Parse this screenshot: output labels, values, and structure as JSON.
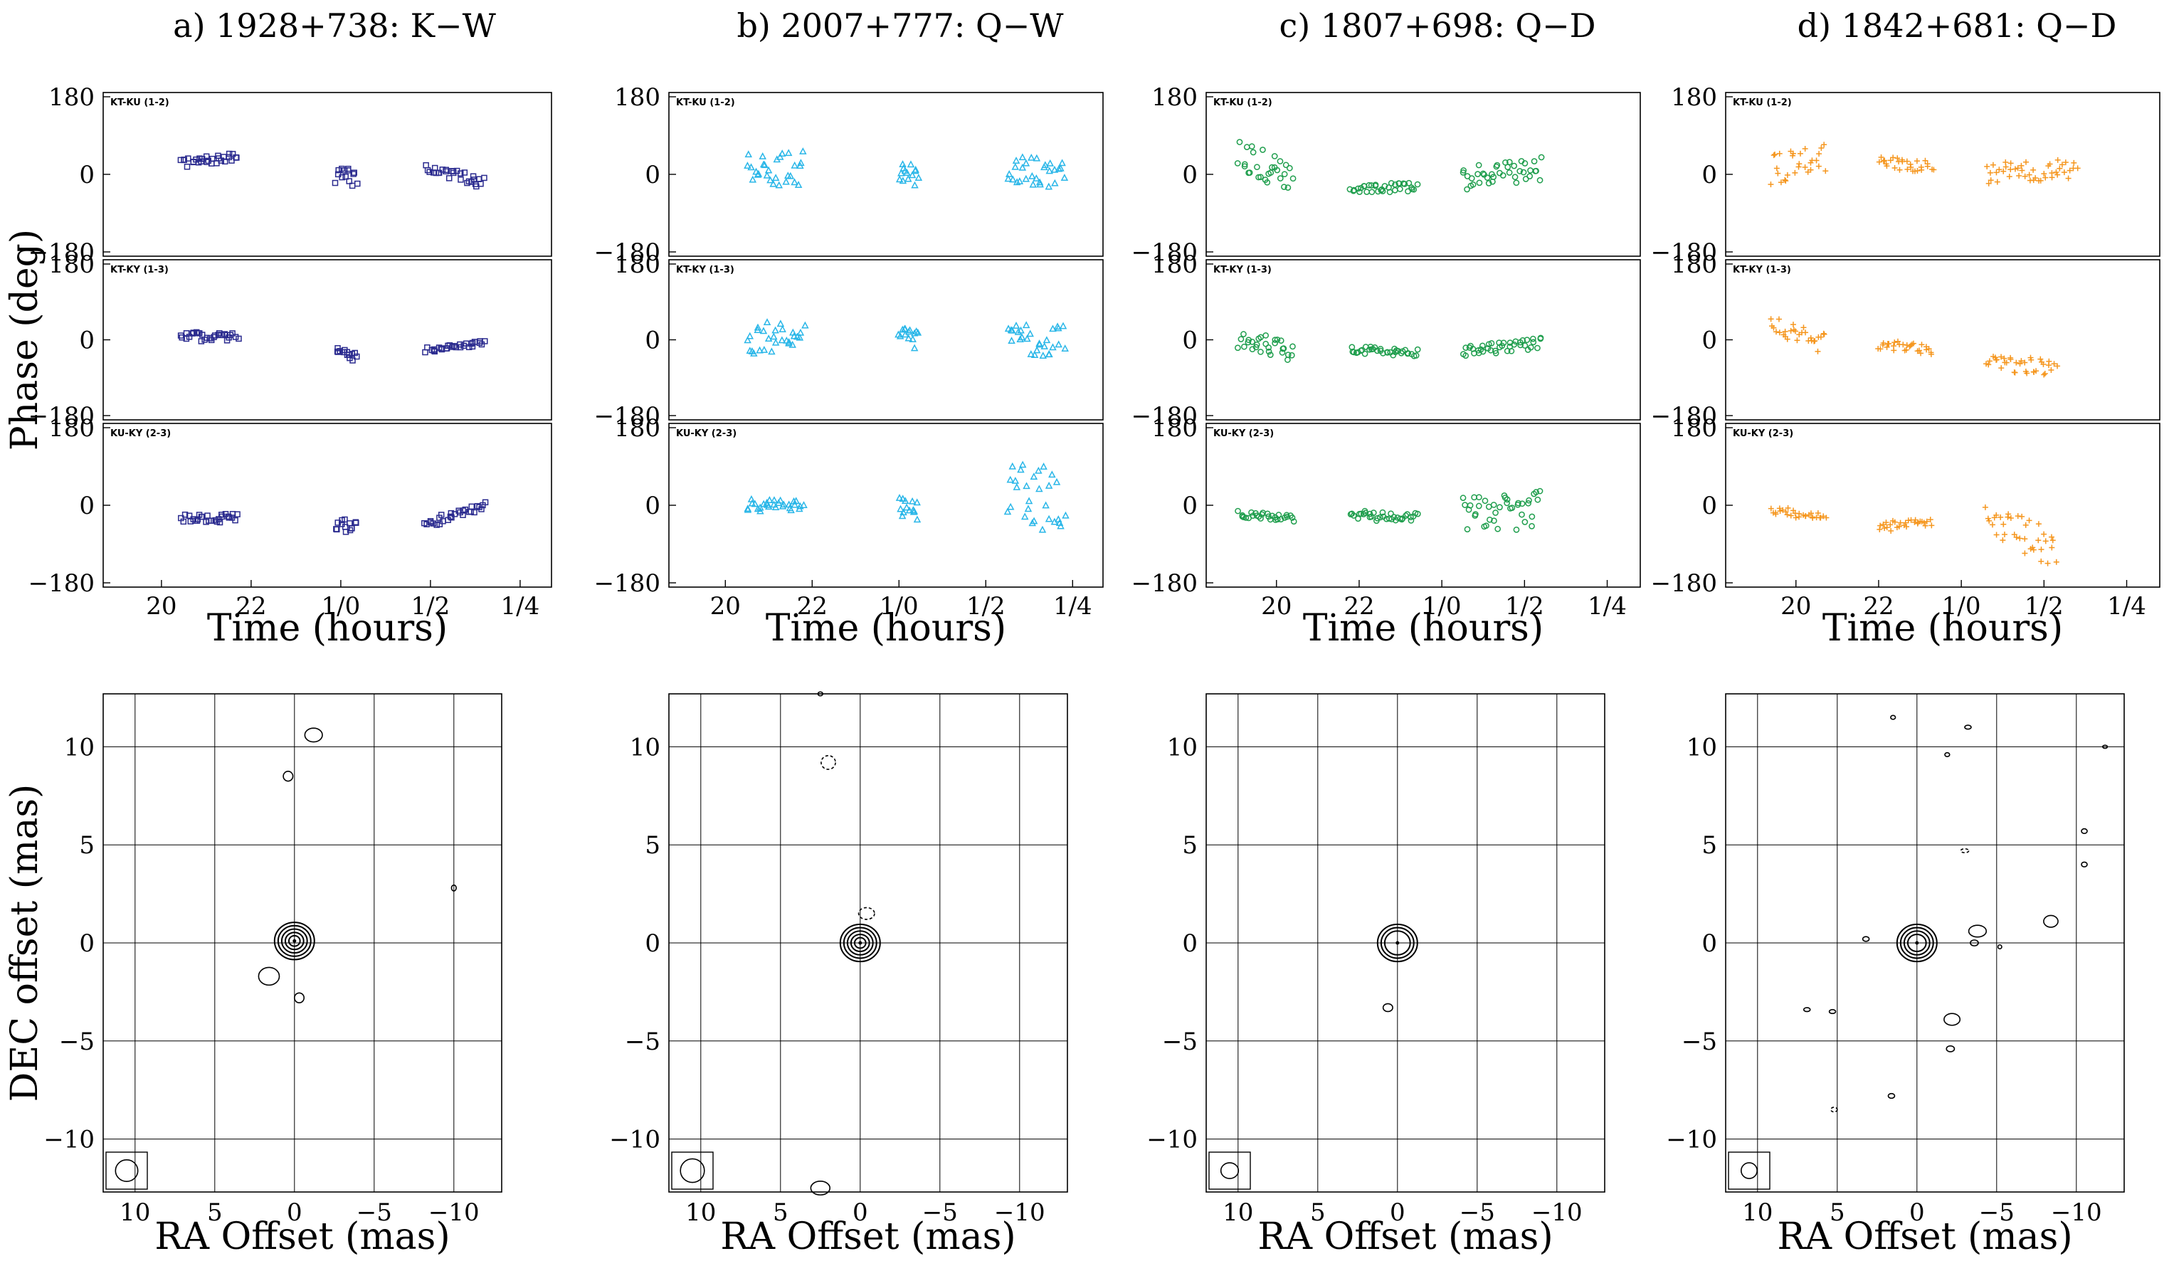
{
  "chart_data": [
    {
      "type": "scatter",
      "title": "a) 1928+738: K−W",
      "color": "#2b2b8f",
      "marker": "square",
      "phase": {
        "xlabel": "Time (hours)",
        "ylabel": "Phase (deg)",
        "ylim": [
          -180,
          180
        ],
        "yticks": [
          "180",
          "0",
          "−180"
        ],
        "xticks": [
          "20",
          "22",
          "1/0",
          "1/2",
          "1/4"
        ],
        "xtick_values": [
          20,
          22,
          24,
          26,
          28
        ],
        "xlim": [
          18.7,
          28.7
        ],
        "baselines": [
          {
            "name": "KT-KU (1-2)",
            "groups": [
              {
                "x0": 20.45,
                "x1": 21.7,
                "y0": 25,
                "y1": 40,
                "spread": 10
              },
              {
                "x0": 23.9,
                "x1": 24.35,
                "y0": 0,
                "y1": -10,
                "spread": 20
              },
              {
                "x0": 25.9,
                "x1": 27.2,
                "y0": 15,
                "y1": -20,
                "spread": 12
              }
            ]
          },
          {
            "name": "KT-KY (1-3)",
            "groups": [
              {
                "x0": 20.45,
                "x1": 21.7,
                "y0": 5,
                "y1": 10,
                "spread": 12
              },
              {
                "x0": 23.9,
                "x1": 24.35,
                "y0": -30,
                "y1": -40,
                "spread": 12
              },
              {
                "x0": 25.9,
                "x1": 27.2,
                "y0": -25,
                "y1": -10,
                "spread": 8
              }
            ]
          },
          {
            "name": "KU-KY (2-3)",
            "groups": [
              {
                "x0": 20.45,
                "x1": 21.7,
                "y0": -30,
                "y1": -30,
                "spread": 10
              },
              {
                "x0": 23.9,
                "x1": 24.35,
                "y0": -45,
                "y1": -50,
                "spread": 15
              },
              {
                "x0": 25.9,
                "x1": 27.2,
                "y0": -45,
                "y1": 0,
                "spread": 10
              }
            ]
          }
        ]
      },
      "map": {
        "xlabel": "RA Offset (mas)",
        "ylabel": "DEC offset (mas)",
        "xlim": [
          12,
          -13
        ],
        "ylim": [
          -12.7,
          12.7
        ],
        "xticks": [
          "10",
          "5",
          "0",
          "−5",
          "−10"
        ],
        "xtick_values": [
          10,
          5,
          0,
          -5,
          -10
        ],
        "yticks": [
          "10",
          "5",
          "0",
          "−5",
          "−10"
        ],
        "ytick_values": [
          10,
          5,
          0,
          -5,
          -10
        ],
        "core": {
          "x": 0,
          "y": 0.1,
          "levels": 5
        },
        "components": [
          {
            "x": -1.2,
            "y": 10.6,
            "rx": 0.55,
            "ry": 0.35,
            "dashed": false
          },
          {
            "x": 0.4,
            "y": 8.5,
            "rx": 0.3,
            "ry": 0.25,
            "dashed": false
          },
          {
            "x": -10,
            "y": 2.8,
            "rx": 0.15,
            "ry": 0.15,
            "dashed": false
          },
          {
            "x": 1.6,
            "y": -1.7,
            "rx": 0.65,
            "ry": 0.45,
            "dashed": false
          },
          {
            "x": -0.3,
            "y": -2.8,
            "rx": 0.3,
            "ry": 0.25,
            "dashed": false
          }
        ],
        "beam": {
          "rx": 0.7,
          "ry": 0.55
        }
      }
    },
    {
      "type": "scatter",
      "title": "b) 2007+777: Q−W",
      "color": "#29b6e8",
      "marker": "triangle",
      "phase": {
        "xlabel": "Time (hours)",
        "ylabel": "Phase (deg)",
        "ylim": [
          -180,
          180
        ],
        "yticks": [
          "180",
          "0",
          "−180"
        ],
        "xticks": [
          "20",
          "22",
          "1/0",
          "1/2",
          "1/4"
        ],
        "xtick_values": [
          20,
          22,
          24,
          26,
          28
        ],
        "xlim": [
          18.7,
          28.7
        ],
        "baselines": [
          {
            "name": "KT-KU (1-2)",
            "groups": [
              {
                "x0": 20.5,
                "x1": 21.8,
                "y0": 10,
                "y1": 15,
                "spread": 40
              },
              {
                "x0": 24.0,
                "x1": 24.45,
                "y0": 5,
                "y1": -5,
                "spread": 25
              },
              {
                "x0": 26.5,
                "x1": 27.8,
                "y0": 5,
                "y1": 5,
                "spread": 35
              }
            ]
          },
          {
            "name": "KT-KY (1-3)",
            "groups": [
              {
                "x0": 20.5,
                "x1": 21.8,
                "y0": 5,
                "y1": 15,
                "spread": 40
              },
              {
                "x0": 24.0,
                "x1": 24.45,
                "y0": 0,
                "y1": 5,
                "spread": 25
              },
              {
                "x0": 26.5,
                "x1": 27.8,
                "y0": -5,
                "y1": 0,
                "spread": 40
              }
            ]
          },
          {
            "name": "KU-KY (2-3)",
            "groups": [
              {
                "x0": 20.5,
                "x1": 21.8,
                "y0": 0,
                "y1": 0,
                "spread": 15
              },
              {
                "x0": 24.0,
                "x1": 24.45,
                "y0": 0,
                "y1": -10,
                "spread": 25
              },
              {
                "x0": 26.5,
                "x1": 27.8,
                "y0": 10,
                "y1": 30,
                "spread": 80
              }
            ]
          }
        ]
      },
      "map": {
        "xlabel": "RA Offset (mas)",
        "ylabel": "DEC offset (mas)",
        "xlim": [
          12,
          -13
        ],
        "ylim": [
          -12.7,
          12.7
        ],
        "xticks": [
          "10",
          "5",
          "0",
          "−5",
          "−10"
        ],
        "xtick_values": [
          10,
          5,
          0,
          -5,
          -10
        ],
        "yticks": [
          "10",
          "5",
          "0",
          "−5",
          "−10"
        ],
        "ytick_values": [
          10,
          5,
          0,
          -5,
          -10
        ],
        "core": {
          "x": 0,
          "y": 0,
          "levels": 5
        },
        "components": [
          {
            "x": 2,
            "y": 9.2,
            "rx": 0.45,
            "ry": 0.35,
            "dashed": true
          },
          {
            "x": -0.4,
            "y": 1.5,
            "rx": 0.5,
            "ry": 0.3,
            "dashed": true
          },
          {
            "x": 2.5,
            "y": -12.5,
            "rx": 0.6,
            "ry": 0.35,
            "dashed": false
          },
          {
            "x": 2.5,
            "y": 12.7,
            "rx": 0.15,
            "ry": 0.1,
            "dashed": false
          }
        ],
        "beam": {
          "rx": 0.75,
          "ry": 0.6
        }
      }
    },
    {
      "type": "scatter",
      "title": "c) 1807+698: Q−D",
      "color": "#1f9e4d",
      "marker": "circle",
      "phase": {
        "xlabel": "Time (hours)",
        "ylabel": "Phase (deg)",
        "ylim": [
          -180,
          180
        ],
        "yticks": [
          "180",
          "0",
          "−180"
        ],
        "xticks": [
          "20",
          "22",
          "1/0",
          "1/2",
          "1/4"
        ],
        "xtick_values": [
          20,
          22,
          24,
          26,
          28
        ],
        "xlim": [
          18.3,
          28.8
        ],
        "baselines": [
          {
            "name": "KT-KU (1-2)",
            "groups": [
              {
                "x0": 19.1,
                "x1": 20.4,
                "y0": 40,
                "y1": -10,
                "spread": 40
              },
              {
                "x0": 21.8,
                "x1": 23.4,
                "y0": -30,
                "y1": -30,
                "spread": 12
              },
              {
                "x0": 24.5,
                "x1": 26.4,
                "y0": -10,
                "y1": 10,
                "spread": 30
              }
            ]
          },
          {
            "name": "KT-KY (1-3)",
            "groups": [
              {
                "x0": 19.1,
                "x1": 20.4,
                "y0": 0,
                "y1": -25,
                "spread": 25
              },
              {
                "x0": 21.8,
                "x1": 23.4,
                "y0": -25,
                "y1": -30,
                "spread": 10
              },
              {
                "x0": 24.5,
                "x1": 26.4,
                "y0": -30,
                "y1": -10,
                "spread": 15
              }
            ]
          },
          {
            "name": "KU-KY (2-3)",
            "groups": [
              {
                "x0": 19.1,
                "x1": 20.4,
                "y0": -20,
                "y1": -30,
                "spread": 8
              },
              {
                "x0": 21.8,
                "x1": 23.4,
                "y0": -20,
                "y1": -30,
                "spread": 12
              },
              {
                "x0": 24.5,
                "x1": 26.4,
                "y0": -20,
                "y1": -10,
                "spread": 45
              }
            ]
          }
        ]
      },
      "map": {
        "xlabel": "RA Offset (mas)",
        "ylabel": "DEC offset (mas)",
        "xlim": [
          12,
          -13
        ],
        "ylim": [
          -12.7,
          12.7
        ],
        "xticks": [
          "10",
          "5",
          "0",
          "−5",
          "−10"
        ],
        "xtick_values": [
          10,
          5,
          0,
          -5,
          -10
        ],
        "yticks": [
          "10",
          "5",
          "0",
          "−5",
          "−10"
        ],
        "ytick_values": [
          10,
          5,
          0,
          -5,
          -10
        ],
        "core": {
          "x": 0,
          "y": 0,
          "levels": 3
        },
        "components": [
          {
            "x": 0.6,
            "y": -3.3,
            "rx": 0.3,
            "ry": 0.2,
            "dashed": false
          }
        ],
        "beam": {
          "rx": 0.55,
          "ry": 0.4
        }
      }
    },
    {
      "type": "scatter",
      "title": "d) 1842+681: Q−D",
      "color": "#f5961e",
      "marker": "plus",
      "phase": {
        "xlabel": "Time (hours)",
        "ylabel": "Phase (deg)",
        "ylim": [
          -180,
          180
        ],
        "yticks": [
          "180",
          "0",
          "−180"
        ],
        "xticks": [
          "20",
          "22",
          "1/0",
          "1/2",
          "1/4"
        ],
        "xtick_values": [
          20,
          22,
          24,
          26,
          28
        ],
        "xlim": [
          18.3,
          28.8
        ],
        "baselines": [
          {
            "name": "KT-KU (1-2)",
            "groups": [
              {
                "x0": 19.4,
                "x1": 20.7,
                "y0": 10,
                "y1": 40,
                "spread": 35
              },
              {
                "x0": 22.0,
                "x1": 23.3,
                "y0": 30,
                "y1": 15,
                "spread": 15
              },
              {
                "x0": 24.6,
                "x1": 26.8,
                "y0": 0,
                "y1": 15,
                "spread": 25
              }
            ]
          },
          {
            "name": "KT-KY (1-3)",
            "groups": [
              {
                "x0": 19.4,
                "x1": 20.7,
                "y0": 30,
                "y1": -5,
                "spread": 30
              },
              {
                "x0": 22.0,
                "x1": 23.3,
                "y0": -10,
                "y1": -25,
                "spread": 12
              },
              {
                "x0": 24.6,
                "x1": 26.3,
                "y0": -50,
                "y1": -70,
                "spread": 20
              }
            ]
          },
          {
            "name": "KU-KY (2-3)",
            "groups": [
              {
                "x0": 19.4,
                "x1": 20.7,
                "y0": -10,
                "y1": -30,
                "spread": 10
              },
              {
                "x0": 22.0,
                "x1": 23.3,
                "y0": -50,
                "y1": -40,
                "spread": 12
              },
              {
                "x0": 24.6,
                "x1": 26.3,
                "y0": -30,
                "y1": -100,
                "spread": 45
              }
            ]
          }
        ]
      },
      "map": {
        "xlabel": "RA Offset (mas)",
        "ylabel": "DEC offset (mas)",
        "xlim": [
          12,
          -13
        ],
        "ylim": [
          -12.7,
          12.7
        ],
        "xticks": [
          "10",
          "5",
          "0",
          "−5",
          "−10"
        ],
        "xtick_values": [
          10,
          5,
          0,
          -5,
          -10
        ],
        "yticks": [
          "10",
          "5",
          "0",
          "−5",
          "−10"
        ],
        "ytick_values": [
          10,
          5,
          0,
          -5,
          -10
        ],
        "core": {
          "x": 0,
          "y": 0,
          "levels": 4
        },
        "components": [
          {
            "x": -3.8,
            "y": 0.6,
            "rx": 0.55,
            "ry": 0.3,
            "dashed": false
          },
          {
            "x": -8.4,
            "y": 1.1,
            "rx": 0.45,
            "ry": 0.3,
            "dashed": false
          },
          {
            "x": -2.2,
            "y": -3.9,
            "rx": 0.5,
            "ry": 0.3,
            "dashed": false
          },
          {
            "x": -3.6,
            "y": 0,
            "rx": 0.25,
            "ry": 0.15,
            "dashed": false
          },
          {
            "x": -2.1,
            "y": -5.4,
            "rx": 0.25,
            "ry": 0.15,
            "dashed": false
          },
          {
            "x": -10.5,
            "y": 5.7,
            "rx": 0.18,
            "ry": 0.12,
            "dashed": false
          },
          {
            "x": -10.5,
            "y": 4,
            "rx": 0.18,
            "ry": 0.12,
            "dashed": false
          },
          {
            "x": -3,
            "y": 4.7,
            "rx": 0.25,
            "ry": 0.1,
            "dashed": true
          },
          {
            "x": 5.2,
            "y": -8.5,
            "rx": 0.2,
            "ry": 0.12,
            "dashed": true
          },
          {
            "x": 5.3,
            "y": -3.5,
            "rx": 0.2,
            "ry": 0.1,
            "dashed": false
          },
          {
            "x": 6.9,
            "y": -3.4,
            "rx": 0.2,
            "ry": 0.1,
            "dashed": false
          },
          {
            "x": 1.6,
            "y": -7.8,
            "rx": 0.2,
            "ry": 0.12,
            "dashed": false
          },
          {
            "x": 3.2,
            "y": 0.2,
            "rx": 0.2,
            "ry": 0.12,
            "dashed": false
          },
          {
            "x": -3.2,
            "y": 11,
            "rx": 0.2,
            "ry": 0.1,
            "dashed": false
          },
          {
            "x": -1.9,
            "y": 9.6,
            "rx": 0.15,
            "ry": 0.1,
            "dashed": false
          },
          {
            "x": 1.5,
            "y": 11.5,
            "rx": 0.15,
            "ry": 0.1,
            "dashed": false
          },
          {
            "x": -5.2,
            "y": -0.2,
            "rx": 0.12,
            "ry": 0.1,
            "dashed": false
          },
          {
            "x": -11.8,
            "y": 10,
            "rx": 0.15,
            "ry": 0.08,
            "dashed": false
          }
        ],
        "beam": {
          "rx": 0.5,
          "ry": 0.4
        }
      }
    }
  ]
}
